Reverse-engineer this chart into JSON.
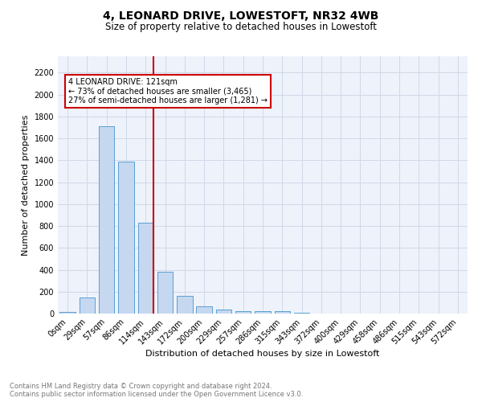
{
  "title": "4, LEONARD DRIVE, LOWESTOFT, NR32 4WB",
  "subtitle": "Size of property relative to detached houses in Lowestoft",
  "xlabel": "Distribution of detached houses by size in Lowestoft",
  "ylabel": "Number of detached properties",
  "footnote1": "Contains HM Land Registry data © Crown copyright and database right 2024.",
  "footnote2": "Contains public sector information licensed under the Open Government Licence v3.0.",
  "bar_labels": [
    "0sqm",
    "29sqm",
    "57sqm",
    "86sqm",
    "114sqm",
    "143sqm",
    "172sqm",
    "200sqm",
    "229sqm",
    "257sqm",
    "286sqm",
    "315sqm",
    "343sqm",
    "372sqm",
    "400sqm",
    "429sqm",
    "458sqm",
    "486sqm",
    "515sqm",
    "543sqm",
    "572sqm"
  ],
  "bar_values": [
    15,
    150,
    1710,
    1390,
    830,
    380,
    165,
    65,
    40,
    25,
    20,
    25,
    10,
    0,
    0,
    0,
    0,
    0,
    0,
    0,
    0
  ],
  "bar_color": "#c5d8f0",
  "bar_edge_color": "#5a9fd4",
  "vline_color": "#cc0000",
  "vline_x_index": 4,
  "annotation_text": "4 LEONARD DRIVE: 121sqm\n← 73% of detached houses are smaller (3,465)\n27% of semi-detached houses are larger (1,281) →",
  "annotation_box_color": "#ffffff",
  "annotation_box_edge": "#cc0000",
  "ylim": [
    0,
    2200
  ],
  "yticks": [
    0,
    200,
    400,
    600,
    800,
    1000,
    1200,
    1400,
    1600,
    1800,
    2000,
    2200
  ],
  "grid_color": "#d0d8e8",
  "background_color": "#eef2fa",
  "title_fontsize": 10,
  "subtitle_fontsize": 8.5,
  "axis_label_fontsize": 8,
  "tick_fontsize": 7,
  "footnote_fontsize": 6
}
